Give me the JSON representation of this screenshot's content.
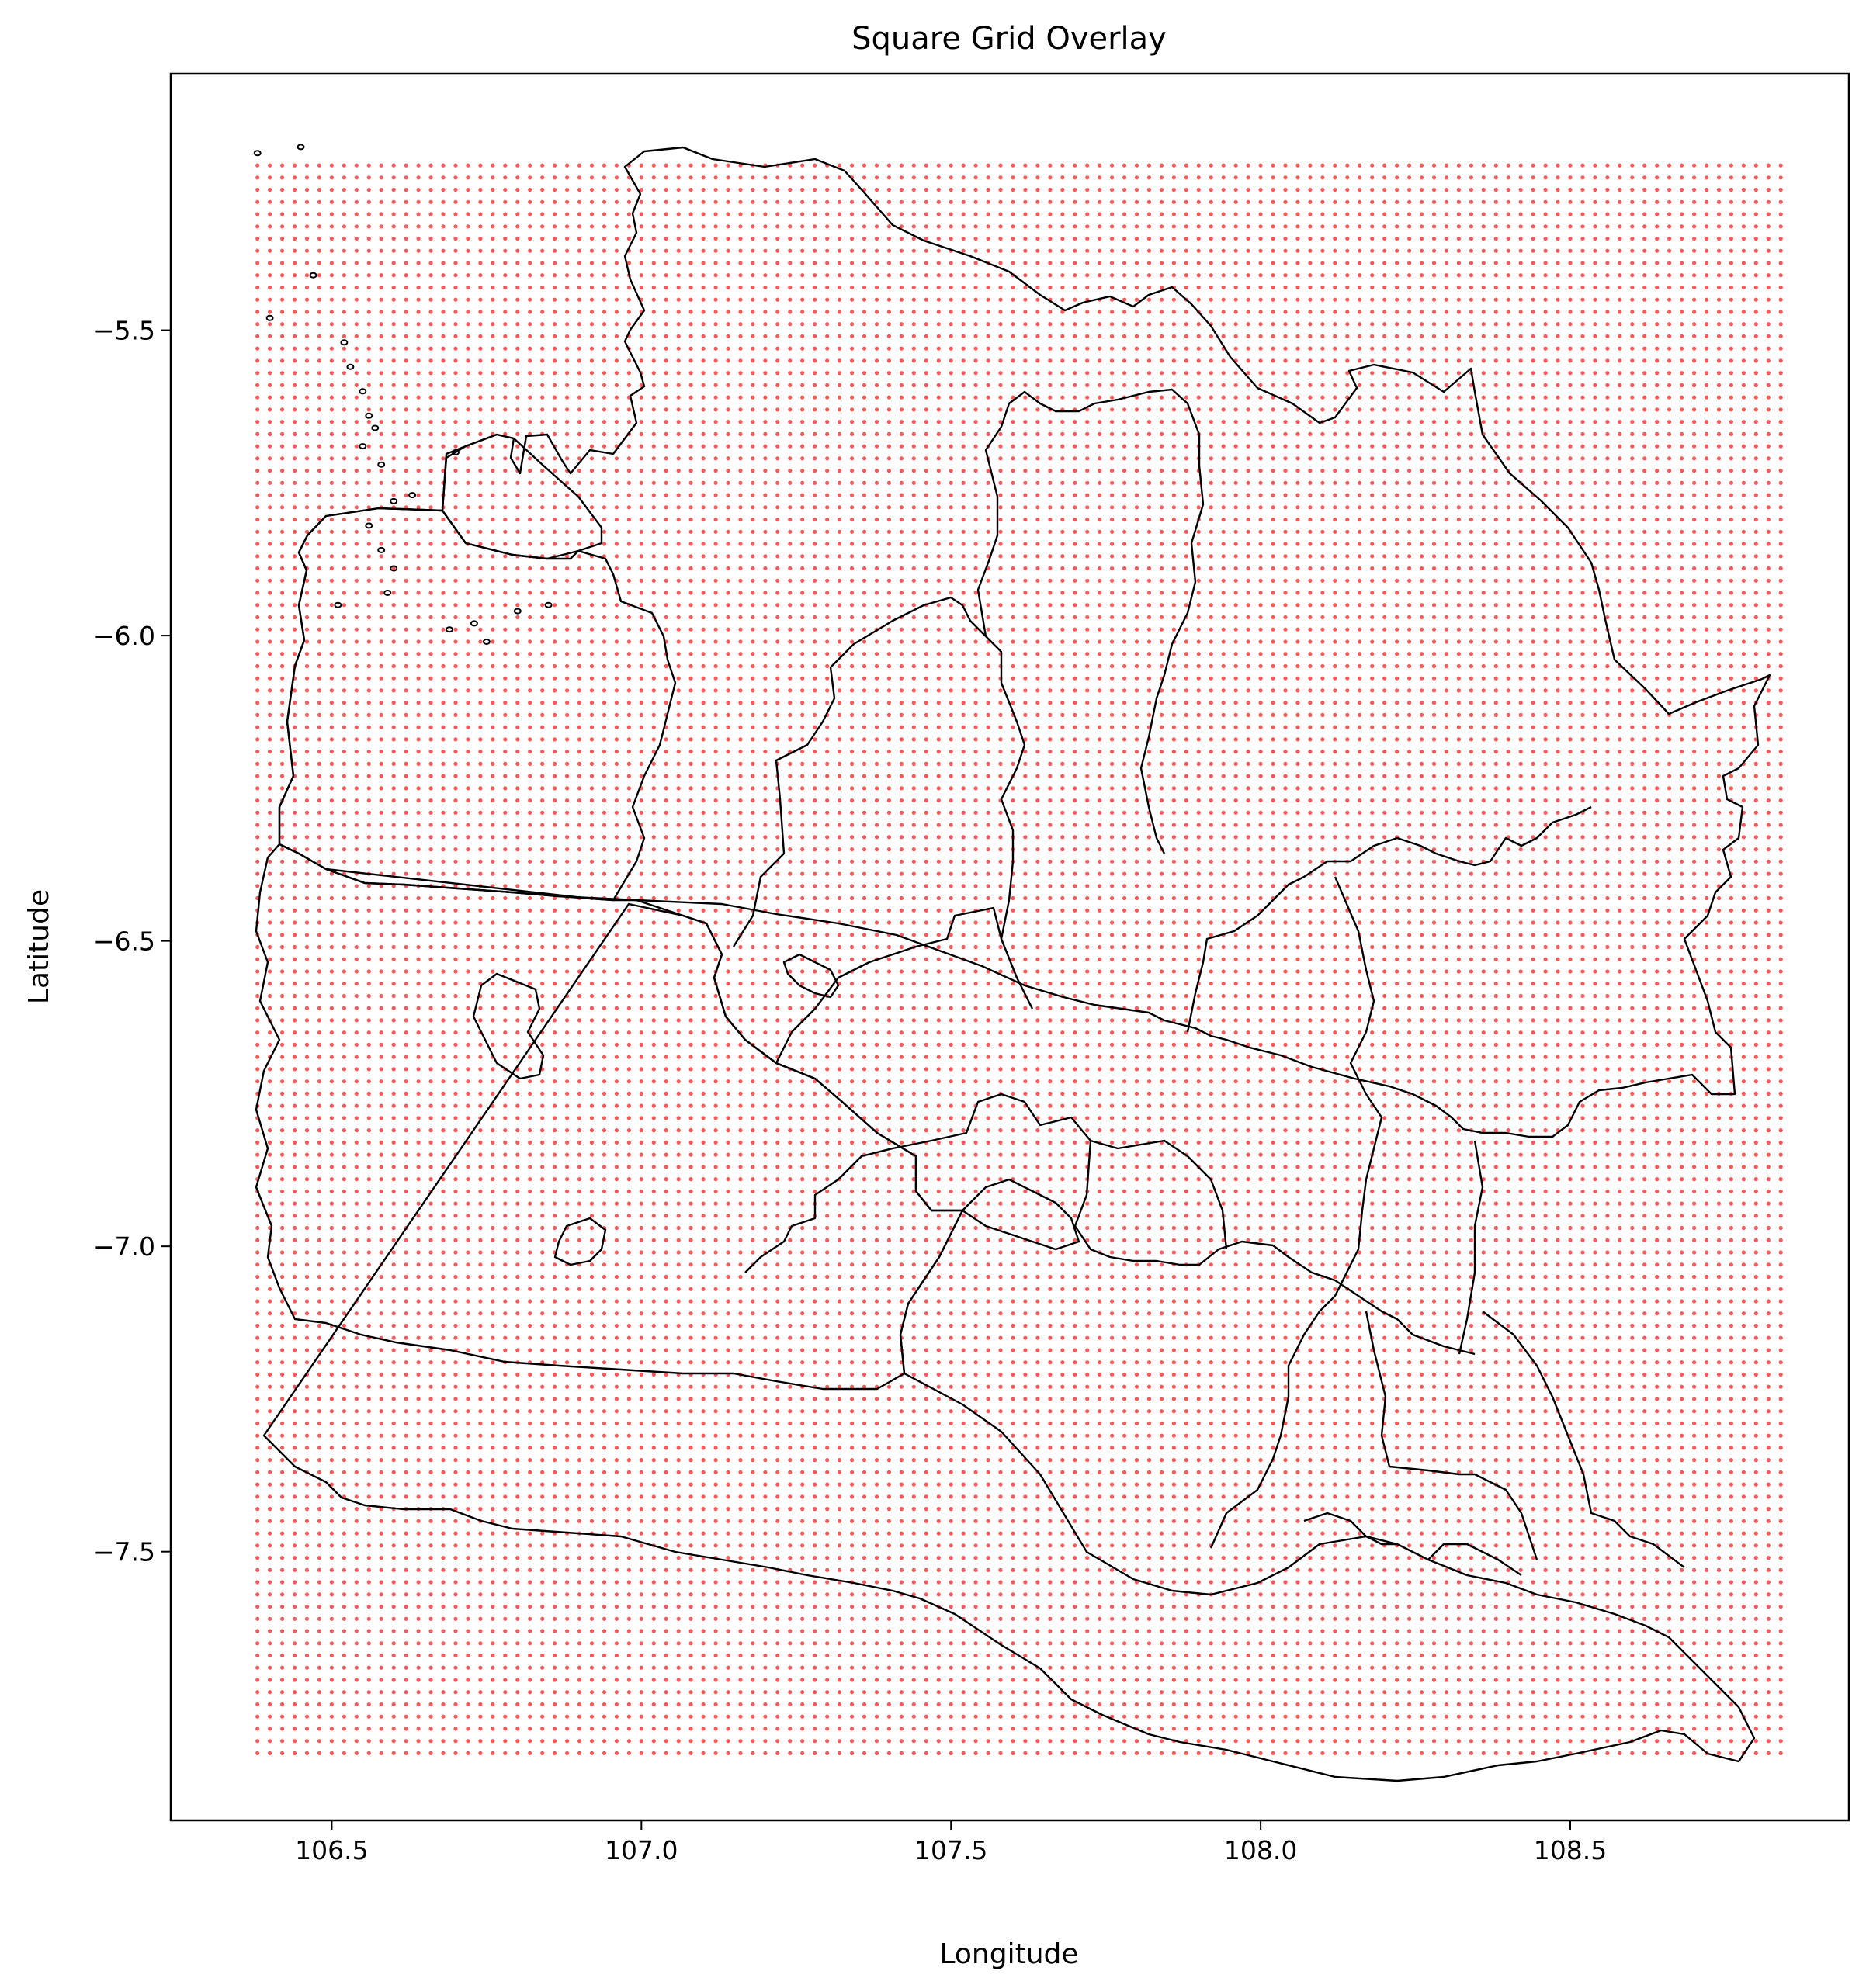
{
  "chart_data": {
    "type": "scatter",
    "title": "Square Grid Overlay",
    "xlabel": "Longitude",
    "ylabel": "Latitude",
    "xlim": [
      106.24,
      108.95
    ],
    "ylim": [
      -7.94,
      -5.08
    ],
    "xticks": [
      {
        "value": 106.5,
        "label": "106.5"
      },
      {
        "value": 107.0,
        "label": "107.0"
      },
      {
        "value": 107.5,
        "label": "107.5"
      },
      {
        "value": 108.0,
        "label": "108.0"
      },
      {
        "value": 108.5,
        "label": "108.5"
      }
    ],
    "yticks": [
      {
        "value": -5.5,
        "label": "−5.5"
      },
      {
        "value": -6.0,
        "label": "−6.0"
      },
      {
        "value": -6.5,
        "label": "−6.5"
      },
      {
        "value": -7.0,
        "label": "−7.0"
      },
      {
        "value": -7.5,
        "label": "−7.5"
      }
    ],
    "grid": false,
    "series": [
      {
        "kind": "point-grid",
        "color": "#ff3b3b",
        "lon_min": 106.38,
        "lon_max": 108.84,
        "lat_min": -7.83,
        "lat_max": -5.23,
        "step": 0.02
      }
    ],
    "boundary_color": "#000000",
    "islands": [
      [
        106.38,
        -5.21
      ],
      [
        106.45,
        -5.2
      ],
      [
        106.4,
        -5.48
      ],
      [
        106.47,
        -5.41
      ],
      [
        106.52,
        -5.52
      ],
      [
        106.53,
        -5.56
      ],
      [
        106.55,
        -5.6
      ],
      [
        106.56,
        -5.64
      ],
      [
        106.57,
        -5.66
      ],
      [
        106.55,
        -5.69
      ],
      [
        106.58,
        -5.72
      ],
      [
        106.6,
        -5.78
      ],
      [
        106.56,
        -5.82
      ],
      [
        106.58,
        -5.86
      ],
      [
        106.6,
        -5.89
      ],
      [
        106.59,
        -5.93
      ],
      [
        106.51,
        -5.95
      ],
      [
        106.69,
        -5.99
      ],
      [
        106.73,
        -5.98
      ],
      [
        106.75,
        -6.01
      ],
      [
        106.8,
        -5.96
      ],
      [
        106.85,
        -5.95
      ],
      [
        106.7,
        -5.7
      ],
      [
        106.63,
        -5.77
      ]
    ]
  }
}
